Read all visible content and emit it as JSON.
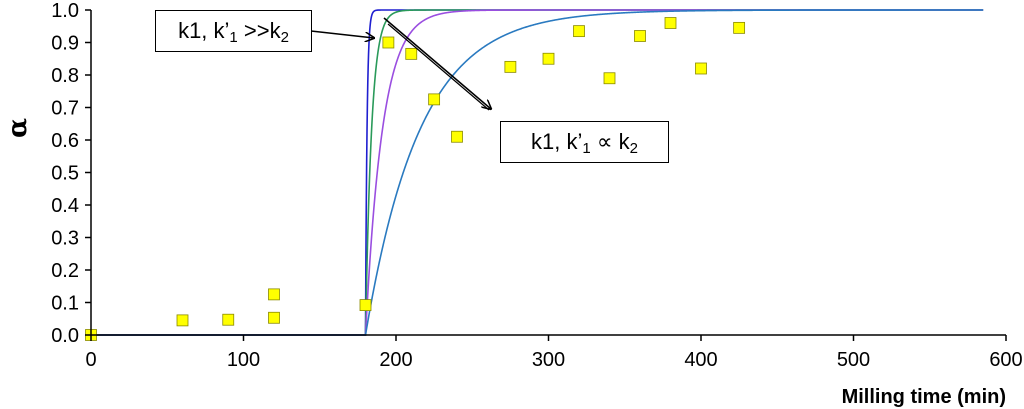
{
  "chart_data": {
    "type": "scatter",
    "xlabel": "Milling time (min)",
    "ylabel": "α",
    "xlim": [
      0,
      600
    ],
    "ylim": [
      0,
      1
    ],
    "xticks": [
      "0",
      "100",
      "200",
      "300",
      "400",
      "500",
      "600"
    ],
    "yticks": [
      "0.0",
      "0.1",
      "0.2",
      "0.3",
      "0.4",
      "0.5",
      "0.6",
      "0.7",
      "0.8",
      "0.9",
      "1.0"
    ],
    "grid": false,
    "legend": "none",
    "scatter_points": {
      "color": "#ffff00",
      "x": [
        0,
        60,
        90,
        120,
        120,
        180,
        195,
        210,
        225,
        240,
        275,
        300,
        320,
        340,
        360,
        380,
        400,
        425
      ],
      "y": [
        0.0,
        0.045,
        0.047,
        0.125,
        0.053,
        0.092,
        0.9,
        0.865,
        0.725,
        0.61,
        0.825,
        0.85,
        0.935,
        0.79,
        0.92,
        0.96,
        0.82,
        0.945
      ]
    },
    "model_curves": [
      {
        "color": "#1f1fd0",
        "t0": 180,
        "k": 1.0,
        "x_end": 585
      },
      {
        "color": "#2a9a5a",
        "t0": 180,
        "k": 0.25,
        "x_end": 585
      },
      {
        "color": "#9a4ee0",
        "t0": 180,
        "k": 0.09,
        "x_end": 585
      },
      {
        "color": "#2a7ac0",
        "t0": 180,
        "k": 0.028,
        "x_end": 585
      }
    ],
    "annotations": {
      "top": {
        "prefix": "k1, k’",
        "sub1": "1",
        "middle": " >>k",
        "sub2": "2"
      },
      "bottom": {
        "prefix": "k1, k’",
        "sub1": "1",
        "middle": " ∝ k",
        "sub2": "2"
      }
    }
  }
}
